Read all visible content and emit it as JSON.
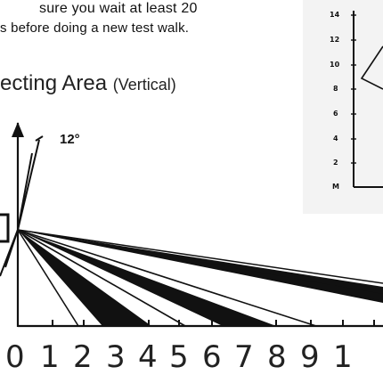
{
  "instruction": {
    "line1": "sure you wait at least 20",
    "line2": "s before doing a new test walk."
  },
  "section": {
    "title": "ecting Area",
    "subtitle": "(Vertical)"
  },
  "angle_label": "12°",
  "distance_axis": [
    "0",
    "1",
    "2",
    "3",
    "4",
    "5",
    "6",
    "7",
    "8",
    "9",
    "1"
  ],
  "inset_axis": [
    "14",
    "12",
    "10",
    "8",
    "6",
    "4",
    "2",
    "M"
  ]
}
